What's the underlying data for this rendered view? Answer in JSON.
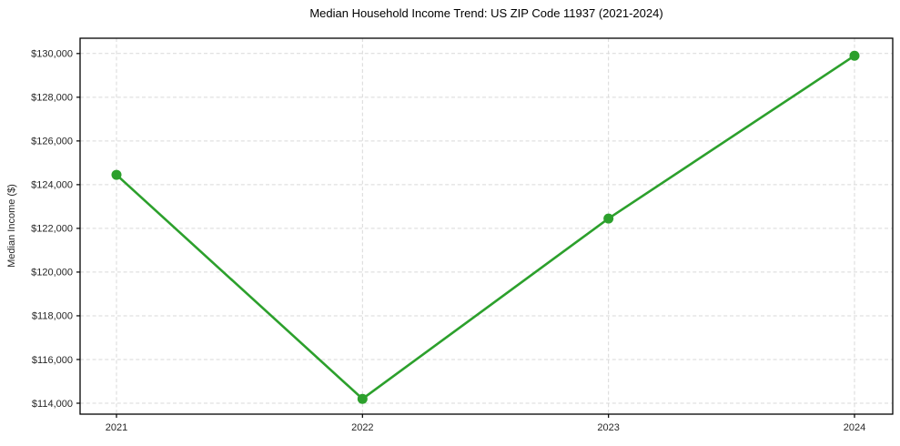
{
  "chart_data": {
    "type": "line",
    "title": "Median Household Income Trend: US ZIP Code 11937 (2021-2024)",
    "xlabel": "",
    "ylabel": "Median Income ($)",
    "categories": [
      "2021",
      "2022",
      "2023",
      "2024"
    ],
    "values": [
      124450,
      114200,
      122450,
      129900
    ],
    "ylim": [
      113500,
      130700
    ],
    "yticks": [
      114000,
      116000,
      118000,
      120000,
      122000,
      124000,
      126000,
      128000,
      130000
    ],
    "ytick_labels": [
      "$114,000",
      "$116,000",
      "$118,000",
      "$120,000",
      "$122,000",
      "$124,000",
      "$126,000",
      "$128,000",
      "$130,000"
    ],
    "grid": true,
    "grid_style": "dashed",
    "legend": "none",
    "line_color": "#2ca02c",
    "marker_color": "#2ca02c",
    "marker_shape": "circle",
    "grid_color": "#d9d9d9",
    "axis_color": "#000000",
    "text_color": "#262626",
    "background_color": "#ffffff"
  }
}
